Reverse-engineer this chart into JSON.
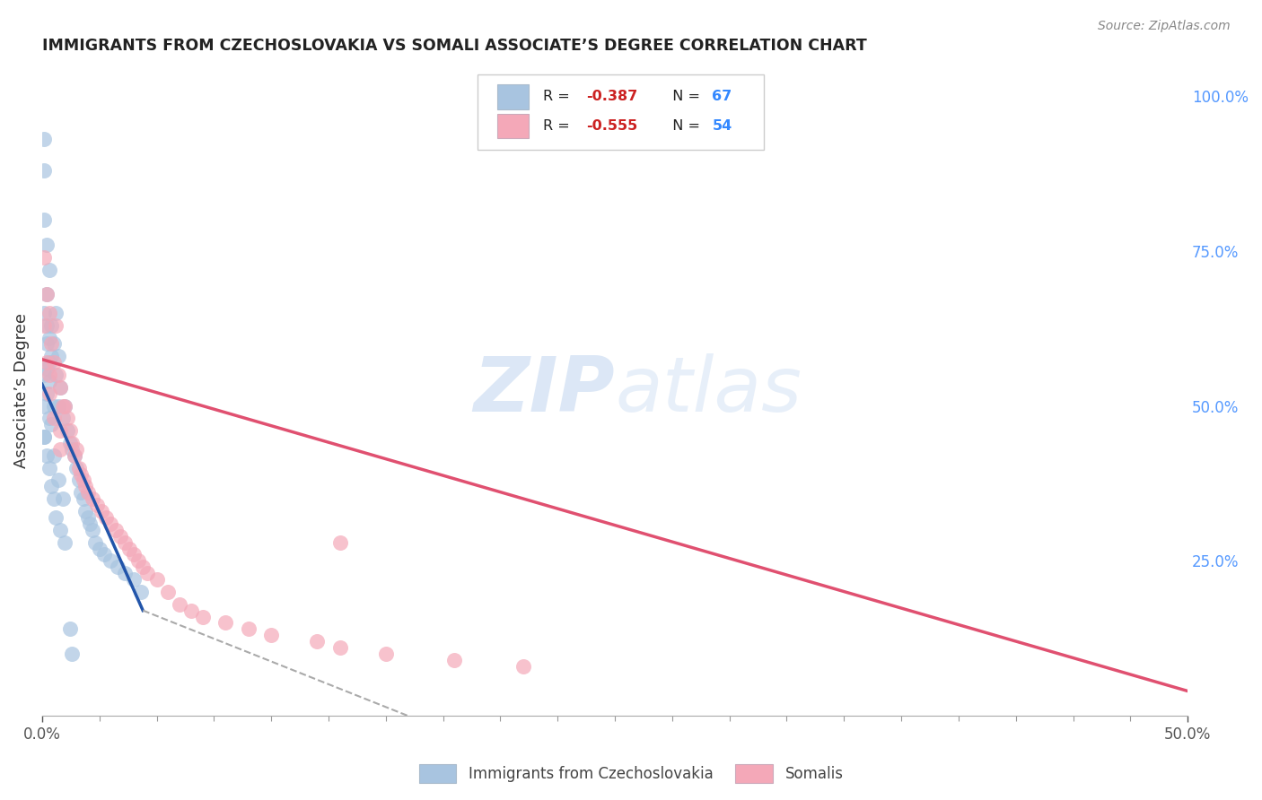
{
  "title": "IMMIGRANTS FROM CZECHOSLOVAKIA VS SOMALI ASSOCIATE’S DEGREE CORRELATION CHART",
  "source": "Source: ZipAtlas.com",
  "ylabel": "Associate’s Degree",
  "right_yticks": [
    "100.0%",
    "75.0%",
    "50.0%",
    "25.0%"
  ],
  "right_ytick_vals": [
    1.0,
    0.75,
    0.5,
    0.25
  ],
  "xlim": [
    0.0,
    0.5
  ],
  "ylim": [
    0.0,
    1.05
  ],
  "blue_color": "#a8c4e0",
  "pink_color": "#f4a8b8",
  "blue_line_color": "#2255aa",
  "pink_line_color": "#e05070",
  "watermark_zip": "ZIP",
  "watermark_atlas": "atlas",
  "blue_scatter_x": [
    0.001,
    0.001,
    0.001,
    0.001,
    0.001,
    0.002,
    0.002,
    0.002,
    0.002,
    0.002,
    0.003,
    0.003,
    0.003,
    0.003,
    0.004,
    0.004,
    0.004,
    0.005,
    0.005,
    0.006,
    0.006,
    0.007,
    0.007,
    0.008,
    0.009,
    0.01,
    0.011,
    0.012,
    0.013,
    0.014,
    0.015,
    0.016,
    0.017,
    0.018,
    0.019,
    0.02,
    0.021,
    0.022,
    0.023,
    0.025,
    0.027,
    0.03,
    0.033,
    0.036,
    0.04,
    0.043,
    0.001,
    0.001,
    0.002,
    0.003,
    0.004,
    0.005,
    0.006,
    0.008,
    0.01,
    0.013,
    0.003,
    0.002,
    0.001,
    0.005,
    0.007,
    0.009,
    0.012
  ],
  "blue_scatter_y": [
    0.93,
    0.88,
    0.8,
    0.65,
    0.55,
    0.76,
    0.68,
    0.63,
    0.56,
    0.52,
    0.72,
    0.61,
    0.54,
    0.48,
    0.63,
    0.58,
    0.47,
    0.6,
    0.5,
    0.65,
    0.55,
    0.58,
    0.5,
    0.53,
    0.48,
    0.5,
    0.46,
    0.44,
    0.43,
    0.42,
    0.4,
    0.38,
    0.36,
    0.35,
    0.33,
    0.32,
    0.31,
    0.3,
    0.28,
    0.27,
    0.26,
    0.25,
    0.24,
    0.23,
    0.22,
    0.2,
    0.5,
    0.45,
    0.42,
    0.4,
    0.37,
    0.35,
    0.32,
    0.3,
    0.28,
    0.1,
    0.57,
    0.6,
    0.45,
    0.42,
    0.38,
    0.35,
    0.14
  ],
  "pink_scatter_x": [
    0.001,
    0.001,
    0.002,
    0.002,
    0.003,
    0.003,
    0.004,
    0.005,
    0.006,
    0.007,
    0.008,
    0.008,
    0.009,
    0.01,
    0.011,
    0.012,
    0.013,
    0.014,
    0.015,
    0.016,
    0.017,
    0.018,
    0.019,
    0.02,
    0.022,
    0.024,
    0.026,
    0.028,
    0.03,
    0.032,
    0.034,
    0.036,
    0.038,
    0.04,
    0.042,
    0.044,
    0.046,
    0.05,
    0.055,
    0.06,
    0.065,
    0.07,
    0.08,
    0.09,
    0.1,
    0.12,
    0.13,
    0.15,
    0.18,
    0.21,
    0.003,
    0.005,
    0.008,
    0.13
  ],
  "pink_scatter_y": [
    0.74,
    0.63,
    0.68,
    0.57,
    0.65,
    0.55,
    0.6,
    0.57,
    0.63,
    0.55,
    0.53,
    0.46,
    0.5,
    0.5,
    0.48,
    0.46,
    0.44,
    0.42,
    0.43,
    0.4,
    0.39,
    0.38,
    0.37,
    0.36,
    0.35,
    0.34,
    0.33,
    0.32,
    0.31,
    0.3,
    0.29,
    0.28,
    0.27,
    0.26,
    0.25,
    0.24,
    0.23,
    0.22,
    0.2,
    0.18,
    0.17,
    0.16,
    0.15,
    0.14,
    0.13,
    0.12,
    0.11,
    0.1,
    0.09,
    0.08,
    0.52,
    0.48,
    0.43,
    0.28
  ],
  "blue_line_x": [
    0.0,
    0.044
  ],
  "blue_line_y": [
    0.535,
    0.17
  ],
  "pink_line_x": [
    0.0,
    0.5
  ],
  "pink_line_y": [
    0.575,
    0.04
  ],
  "dashed_line_x": [
    0.044,
    0.5
  ],
  "dashed_line_y": [
    0.17,
    -0.5
  ]
}
